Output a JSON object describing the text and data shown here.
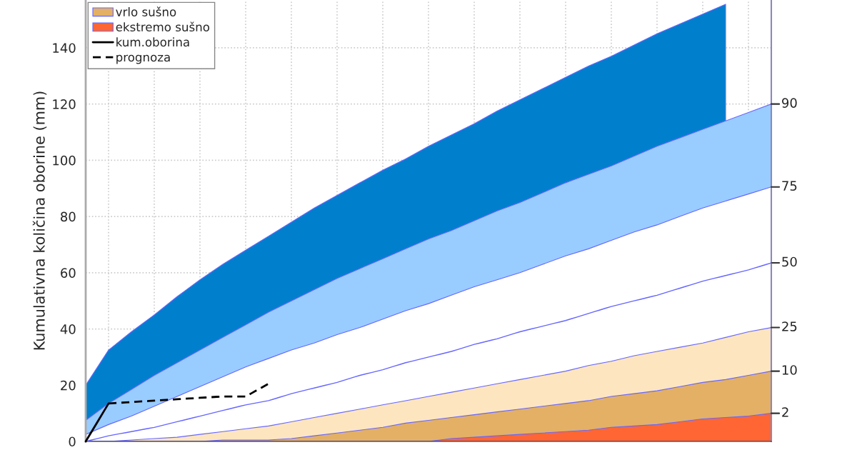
{
  "chart_data": {
    "type": "area",
    "ylabel": "Kumulativna količina oborine (mm)",
    "categories": [
      null,
      null,
      null,
      null,
      null,
      null,
      null,
      null,
      null,
      null,
      null,
      null,
      null,
      null,
      null,
      null,
      null,
      null,
      null,
      null,
      null,
      null,
      null,
      null,
      null,
      null,
      null,
      null,
      null,
      null,
      null
    ],
    "ylim": [
      0,
      157
    ],
    "yticks": [
      0,
      20,
      40,
      60,
      80,
      100,
      120,
      140
    ],
    "grid": true,
    "legend": "top left",
    "annotations": [
      "90",
      "75",
      "50",
      "25",
      "10",
      "2"
    ],
    "series": [
      {
        "color": "#0080cc",
        "values": [
          20,
          32.5,
          39,
          45,
          51.5,
          57.5,
          63,
          68,
          73,
          78,
          83,
          87.5,
          92,
          96.5,
          100.5,
          105,
          109,
          113,
          117.5,
          121.5,
          125.5,
          129.5,
          133.5,
          137,
          141,
          145,
          148.5,
          152,
          155.5,
          null,
          null
        ]
      },
      {
        "color": "#99ccff",
        "values": [
          7.5,
          13.5,
          18.5,
          23.5,
          28,
          32.5,
          37,
          41.5,
          46,
          50,
          54,
          58,
          61.5,
          65,
          68.5,
          72,
          75,
          78.5,
          82,
          85,
          88.5,
          92,
          95,
          98,
          101.5,
          105,
          108,
          111,
          114,
          117,
          120
        ]
      },
      {
        "color": "#ffffff",
        "values": [
          2.5,
          6,
          9,
          12.5,
          16,
          19.5,
          23,
          26.5,
          29.5,
          32.5,
          35,
          38,
          40.5,
          43.5,
          46.5,
          49,
          52,
          55,
          57.5,
          60,
          63,
          66,
          68.5,
          71.5,
          74.5,
          77,
          80,
          83,
          85.5,
          88,
          90.5
        ]
      },
      {
        "type": "line",
        "color": "#6666ff",
        "line_style": "solid",
        "values": [
          0,
          2,
          3.5,
          5,
          7,
          9,
          11,
          13,
          14.5,
          17,
          19,
          21,
          23.5,
          25.5,
          28,
          30,
          32,
          34.5,
          36.5,
          39,
          41,
          43,
          45.5,
          48,
          50,
          52,
          54.5,
          57,
          59,
          61,
          63.5
        ]
      },
      {
        "color": "#fde5c0",
        "values": [
          0,
          0,
          0.5,
          1,
          1.5,
          2.5,
          3.5,
          4.5,
          5.5,
          7,
          8.5,
          10,
          11.5,
          13,
          14.5,
          16,
          17.5,
          19,
          20.5,
          22,
          23.5,
          25,
          27,
          28.5,
          30.5,
          32,
          33.5,
          35,
          37,
          39,
          40.5
        ]
      },
      {
        "name": "vrlo sušno",
        "color": "#e3b066",
        "values": [
          0,
          0,
          0,
          0,
          0,
          0,
          0.5,
          0.5,
          0.5,
          1,
          2,
          3,
          4,
          5,
          6.5,
          7.5,
          8.5,
          9.5,
          10.5,
          11.5,
          12.5,
          13.5,
          14.5,
          16,
          17,
          18,
          19.5,
          21,
          22,
          23.5,
          25
        ]
      },
      {
        "name": "ekstremo sušno",
        "color": "#ff6633",
        "values": [
          0,
          0,
          0,
          0,
          0,
          0,
          0,
          0,
          0,
          0,
          0,
          0,
          0,
          0,
          0,
          0,
          1,
          1.5,
          2,
          2.5,
          3,
          3.5,
          4,
          5,
          5.5,
          6,
          7,
          8,
          8.5,
          9,
          10
        ]
      },
      {
        "type": "line",
        "name": "kum.oborina",
        "color": "#000000",
        "line_style": "solid",
        "values": [
          0,
          13.5,
          null,
          null,
          null,
          null,
          null,
          null,
          null,
          null,
          null,
          null,
          null,
          null,
          null,
          null,
          null,
          null,
          null,
          null,
          null,
          null,
          null,
          null,
          null,
          null,
          null,
          null,
          null,
          null,
          null
        ]
      },
      {
        "type": "line",
        "name": "prognoza",
        "color": "#000000",
        "line_style": "dashed",
        "values": [
          null,
          13.5,
          14,
          14.5,
          15,
          15.5,
          16,
          16,
          20.5,
          null,
          null,
          null,
          null,
          null,
          null,
          null,
          null,
          null,
          null,
          null,
          null,
          null,
          null,
          null,
          null,
          null,
          null,
          null,
          null,
          null,
          null
        ]
      }
    ]
  }
}
